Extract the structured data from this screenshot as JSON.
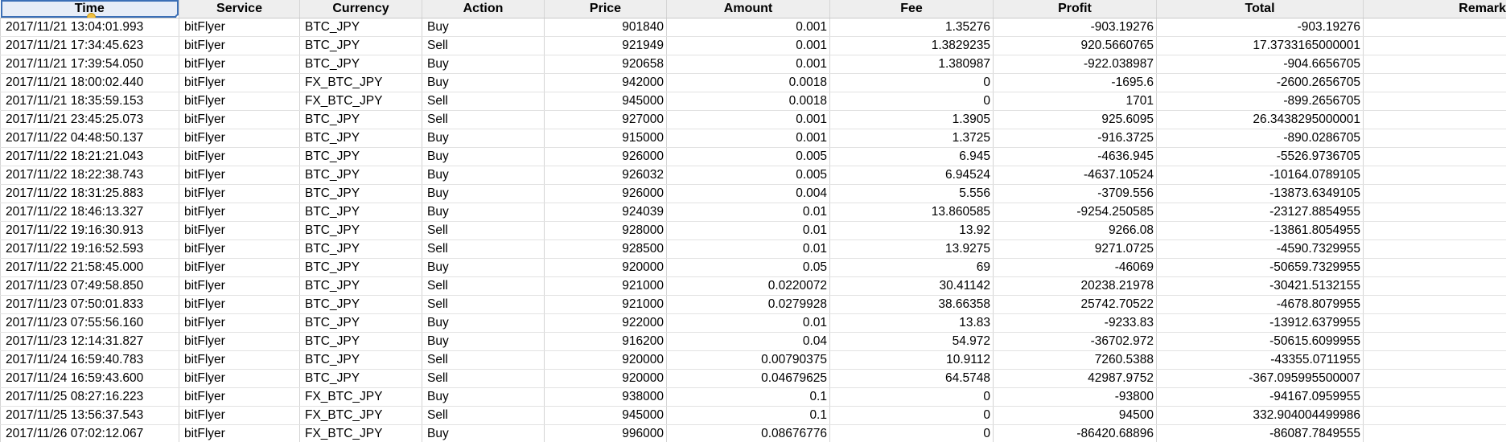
{
  "columns": {
    "time": "Time",
    "service": "Service",
    "currency": "Currency",
    "action": "Action",
    "price": "Price",
    "amount": "Amount",
    "fee": "Fee",
    "profit": "Profit",
    "total": "Total",
    "remark": "Remark"
  },
  "rows": [
    {
      "time": "2017/11/21 13:04:01.993",
      "service": "bitFlyer",
      "currency": "BTC_JPY",
      "action": "Buy",
      "price": "901840",
      "amount": "0.001",
      "fee": "1.35276",
      "profit": "-903.19276",
      "total": "-903.19276",
      "remark": ""
    },
    {
      "time": "2017/11/21 17:34:45.623",
      "service": "bitFlyer",
      "currency": "BTC_JPY",
      "action": "Sell",
      "price": "921949",
      "amount": "0.001",
      "fee": "1.3829235",
      "profit": "920.5660765",
      "total": "17.3733165000001",
      "remark": ""
    },
    {
      "time": "2017/11/21 17:39:54.050",
      "service": "bitFlyer",
      "currency": "BTC_JPY",
      "action": "Buy",
      "price": "920658",
      "amount": "0.001",
      "fee": "1.380987",
      "profit": "-922.038987",
      "total": "-904.6656705",
      "remark": ""
    },
    {
      "time": "2017/11/21 18:00:02.440",
      "service": "bitFlyer",
      "currency": "FX_BTC_JPY",
      "action": "Buy",
      "price": "942000",
      "amount": "0.0018",
      "fee": "0",
      "profit": "-1695.6",
      "total": "-2600.2656705",
      "remark": ""
    },
    {
      "time": "2017/11/21 18:35:59.153",
      "service": "bitFlyer",
      "currency": "FX_BTC_JPY",
      "action": "Sell",
      "price": "945000",
      "amount": "0.0018",
      "fee": "0",
      "profit": "1701",
      "total": "-899.2656705",
      "remark": ""
    },
    {
      "time": "2017/11/21 23:45:25.073",
      "service": "bitFlyer",
      "currency": "BTC_JPY",
      "action": "Sell",
      "price": "927000",
      "amount": "0.001",
      "fee": "1.3905",
      "profit": "925.6095",
      "total": "26.3438295000001",
      "remark": ""
    },
    {
      "time": "2017/11/22 04:48:50.137",
      "service": "bitFlyer",
      "currency": "BTC_JPY",
      "action": "Buy",
      "price": "915000",
      "amount": "0.001",
      "fee": "1.3725",
      "profit": "-916.3725",
      "total": "-890.0286705",
      "remark": ""
    },
    {
      "time": "2017/11/22 18:21:21.043",
      "service": "bitFlyer",
      "currency": "BTC_JPY",
      "action": "Buy",
      "price": "926000",
      "amount": "0.005",
      "fee": "6.945",
      "profit": "-4636.945",
      "total": "-5526.9736705",
      "remark": ""
    },
    {
      "time": "2017/11/22 18:22:38.743",
      "service": "bitFlyer",
      "currency": "BTC_JPY",
      "action": "Buy",
      "price": "926032",
      "amount": "0.005",
      "fee": "6.94524",
      "profit": "-4637.10524",
      "total": "-10164.0789105",
      "remark": ""
    },
    {
      "time": "2017/11/22 18:31:25.883",
      "service": "bitFlyer",
      "currency": "BTC_JPY",
      "action": "Buy",
      "price": "926000",
      "amount": "0.004",
      "fee": "5.556",
      "profit": "-3709.556",
      "total": "-13873.6349105",
      "remark": ""
    },
    {
      "time": "2017/11/22 18:46:13.327",
      "service": "bitFlyer",
      "currency": "BTC_JPY",
      "action": "Buy",
      "price": "924039",
      "amount": "0.01",
      "fee": "13.860585",
      "profit": "-9254.250585",
      "total": "-23127.8854955",
      "remark": ""
    },
    {
      "time": "2017/11/22 19:16:30.913",
      "service": "bitFlyer",
      "currency": "BTC_JPY",
      "action": "Sell",
      "price": "928000",
      "amount": "0.01",
      "fee": "13.92",
      "profit": "9266.08",
      "total": "-13861.8054955",
      "remark": ""
    },
    {
      "time": "2017/11/22 19:16:52.593",
      "service": "bitFlyer",
      "currency": "BTC_JPY",
      "action": "Sell",
      "price": "928500",
      "amount": "0.01",
      "fee": "13.9275",
      "profit": "9271.0725",
      "total": "-4590.7329955",
      "remark": ""
    },
    {
      "time": "2017/11/22 21:58:45.000",
      "service": "bitFlyer",
      "currency": "BTC_JPY",
      "action": "Buy",
      "price": "920000",
      "amount": "0.05",
      "fee": "69",
      "profit": "-46069",
      "total": "-50659.7329955",
      "remark": ""
    },
    {
      "time": "2017/11/23 07:49:58.850",
      "service": "bitFlyer",
      "currency": "BTC_JPY",
      "action": "Sell",
      "price": "921000",
      "amount": "0.0220072",
      "fee": "30.41142",
      "profit": "20238.21978",
      "total": "-30421.5132155",
      "remark": ""
    },
    {
      "time": "2017/11/23 07:50:01.833",
      "service": "bitFlyer",
      "currency": "BTC_JPY",
      "action": "Sell",
      "price": "921000",
      "amount": "0.0279928",
      "fee": "38.66358",
      "profit": "25742.70522",
      "total": "-4678.8079955",
      "remark": ""
    },
    {
      "time": "2017/11/23 07:55:56.160",
      "service": "bitFlyer",
      "currency": "BTC_JPY",
      "action": "Buy",
      "price": "922000",
      "amount": "0.01",
      "fee": "13.83",
      "profit": "-9233.83",
      "total": "-13912.6379955",
      "remark": ""
    },
    {
      "time": "2017/11/23 12:14:31.827",
      "service": "bitFlyer",
      "currency": "BTC_JPY",
      "action": "Buy",
      "price": "916200",
      "amount": "0.04",
      "fee": "54.972",
      "profit": "-36702.972",
      "total": "-50615.6099955",
      "remark": ""
    },
    {
      "time": "2017/11/24 16:59:40.783",
      "service": "bitFlyer",
      "currency": "BTC_JPY",
      "action": "Sell",
      "price": "920000",
      "amount": "0.00790375",
      "fee": "10.9112",
      "profit": "7260.5388",
      "total": "-43355.0711955",
      "remark": ""
    },
    {
      "time": "2017/11/24 16:59:43.600",
      "service": "bitFlyer",
      "currency": "BTC_JPY",
      "action": "Sell",
      "price": "920000",
      "amount": "0.04679625",
      "fee": "64.5748",
      "profit": "42987.9752",
      "total": "-367.095995500007",
      "remark": ""
    },
    {
      "time": "2017/11/25 08:27:16.223",
      "service": "bitFlyer",
      "currency": "FX_BTC_JPY",
      "action": "Buy",
      "price": "938000",
      "amount": "0.1",
      "fee": "0",
      "profit": "-93800",
      "total": "-94167.0959955",
      "remark": ""
    },
    {
      "time": "2017/11/25 13:56:37.543",
      "service": "bitFlyer",
      "currency": "FX_BTC_JPY",
      "action": "Sell",
      "price": "945000",
      "amount": "0.1",
      "fee": "0",
      "profit": "94500",
      "total": "332.904004499986",
      "remark": ""
    },
    {
      "time": "2017/11/26 07:02:12.067",
      "service": "bitFlyer",
      "currency": "FX_BTC_JPY",
      "action": "Buy",
      "price": "996000",
      "amount": "0.08676776",
      "fee": "0",
      "profit": "-86420.68896",
      "total": "-86087.7849555",
      "remark": ""
    }
  ],
  "colors": {
    "header_bg": "#eeeeee",
    "selection_border": "#3b6fb6",
    "gridline": "#d4d4d4"
  }
}
